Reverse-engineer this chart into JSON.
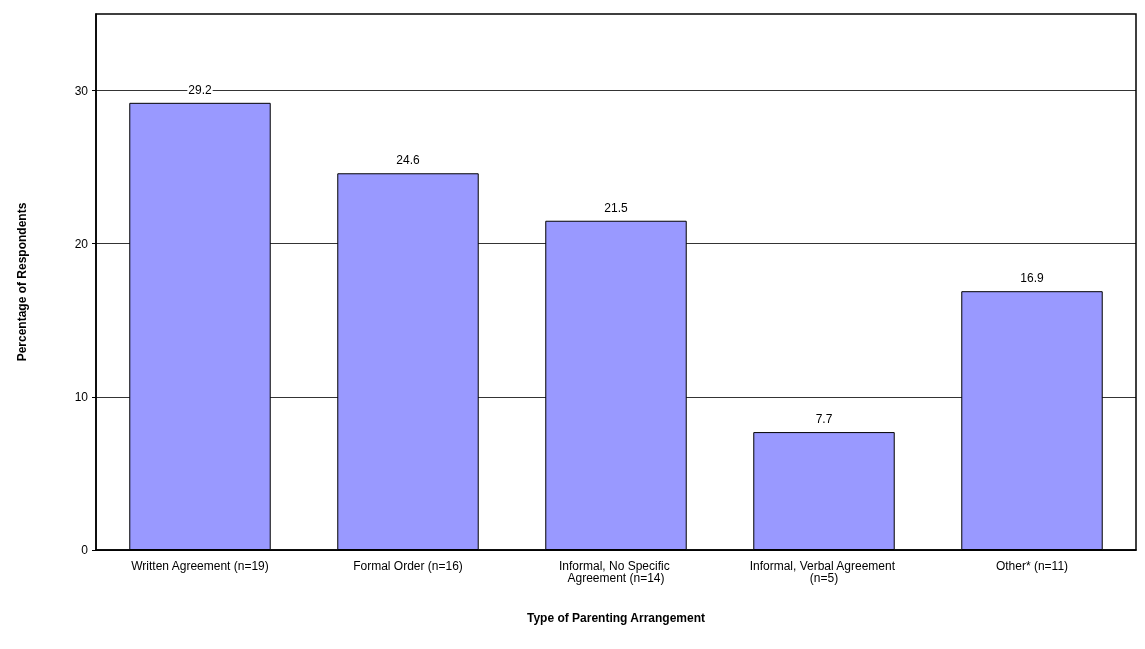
{
  "chart_data": {
    "type": "bar",
    "xlabel": "Type of Parenting Arrangement",
    "ylabel": "Percentage of Respondents",
    "categories": [
      "Written Agreement (n=19)",
      "Formal Order (n=16)",
      "Informal, No Specific Agreement (n=14)",
      "Informal, Verbal Agreement (n=5)",
      "Other* (n=11)"
    ],
    "values": [
      29.2,
      24.6,
      21.5,
      7.7,
      16.9
    ],
    "color": "#9999ff",
    "data_labels": true,
    "ylim": [
      0,
      35
    ],
    "yticks": [
      0,
      10,
      20,
      30
    ],
    "grid": "y"
  }
}
